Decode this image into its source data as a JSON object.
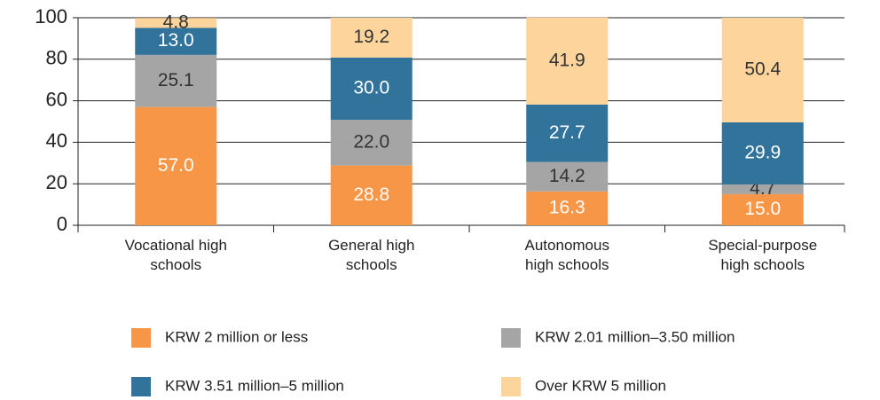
{
  "chart_data": {
    "type": "stacked-bar",
    "categories": [
      "Vocational high\nschools",
      "General high\nschools",
      "Autonomous\nhigh schools",
      "Special-purpose\nhigh schools"
    ],
    "series": [
      {
        "name": "KRW 2 million or less",
        "color": "#f79646",
        "values": [
          57,
          28.8,
          16.3,
          15
        ],
        "value_labels": [
          "57.0",
          "28.8",
          "16.3",
          "15.0"
        ]
      },
      {
        "name": "KRW 2.01 million–3.50 million",
        "color": "#a5a5a5",
        "values": [
          25.1,
          22,
          14.2,
          4.7
        ],
        "value_labels": [
          "25.1",
          "22.0",
          "14.2",
          "4.7"
        ]
      },
      {
        "name": "KRW 3.51 million–5 million",
        "color": "#31739b",
        "values": [
          13,
          30,
          27.7,
          29.9
        ],
        "value_labels": [
          "13.0",
          "30.0",
          "27.7",
          "29.9"
        ]
      },
      {
        "name": "Over KRW 5 million",
        "color": "#fdd49b",
        "values": [
          4.8,
          19.2,
          41.9,
          50.4
        ],
        "value_labels": [
          "4.8",
          "19.2",
          "41.9",
          "50.4"
        ]
      }
    ],
    "ylim": [
      0,
      100
    ],
    "yticks": [
      0,
      20,
      40,
      60,
      80,
      100
    ],
    "grid": true
  }
}
